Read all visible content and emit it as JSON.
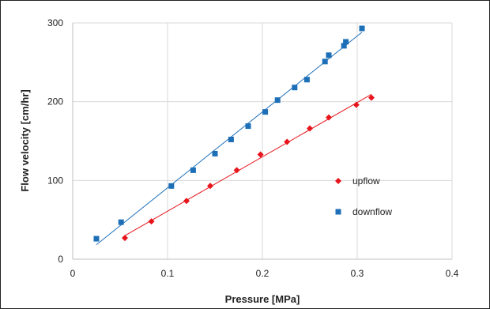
{
  "chart_data": {
    "type": "scatter",
    "xlabel": "Pressure [MPa]",
    "ylabel": "Flow velocity [cm/hr]",
    "xlim": [
      0,
      0.4
    ],
    "ylim": [
      0,
      300
    ],
    "xticks": [
      "0",
      "0.1",
      "0.2",
      "0.3",
      "0.4"
    ],
    "yticks": [
      "0",
      "100",
      "200",
      "300"
    ],
    "grid": true,
    "legend_position": "right",
    "series": [
      {
        "name": "upflow",
        "color": "#e8141c",
        "marker": "diamond",
        "points": [
          [
            0.055,
            27
          ],
          [
            0.083,
            48
          ],
          [
            0.12,
            74
          ],
          [
            0.145,
            93
          ],
          [
            0.173,
            113
          ],
          [
            0.198,
            133
          ],
          [
            0.226,
            149
          ],
          [
            0.25,
            166
          ],
          [
            0.27,
            180
          ],
          [
            0.299,
            196
          ],
          [
            0.315,
            205
          ]
        ]
      },
      {
        "name": "downflow",
        "color": "#1d6fb7",
        "marker": "square",
        "points": [
          [
            0.025,
            26
          ],
          [
            0.051,
            47
          ],
          [
            0.104,
            93
          ],
          [
            0.127,
            113
          ],
          [
            0.15,
            134
          ],
          [
            0.167,
            152
          ],
          [
            0.185,
            169
          ],
          [
            0.203,
            187
          ],
          [
            0.216,
            202
          ],
          [
            0.234,
            218
          ],
          [
            0.247,
            228
          ],
          [
            0.266,
            251
          ],
          [
            0.27,
            259
          ],
          [
            0.286,
            271
          ],
          [
            0.288,
            276
          ],
          [
            0.305,
            293
          ]
        ]
      }
    ]
  }
}
